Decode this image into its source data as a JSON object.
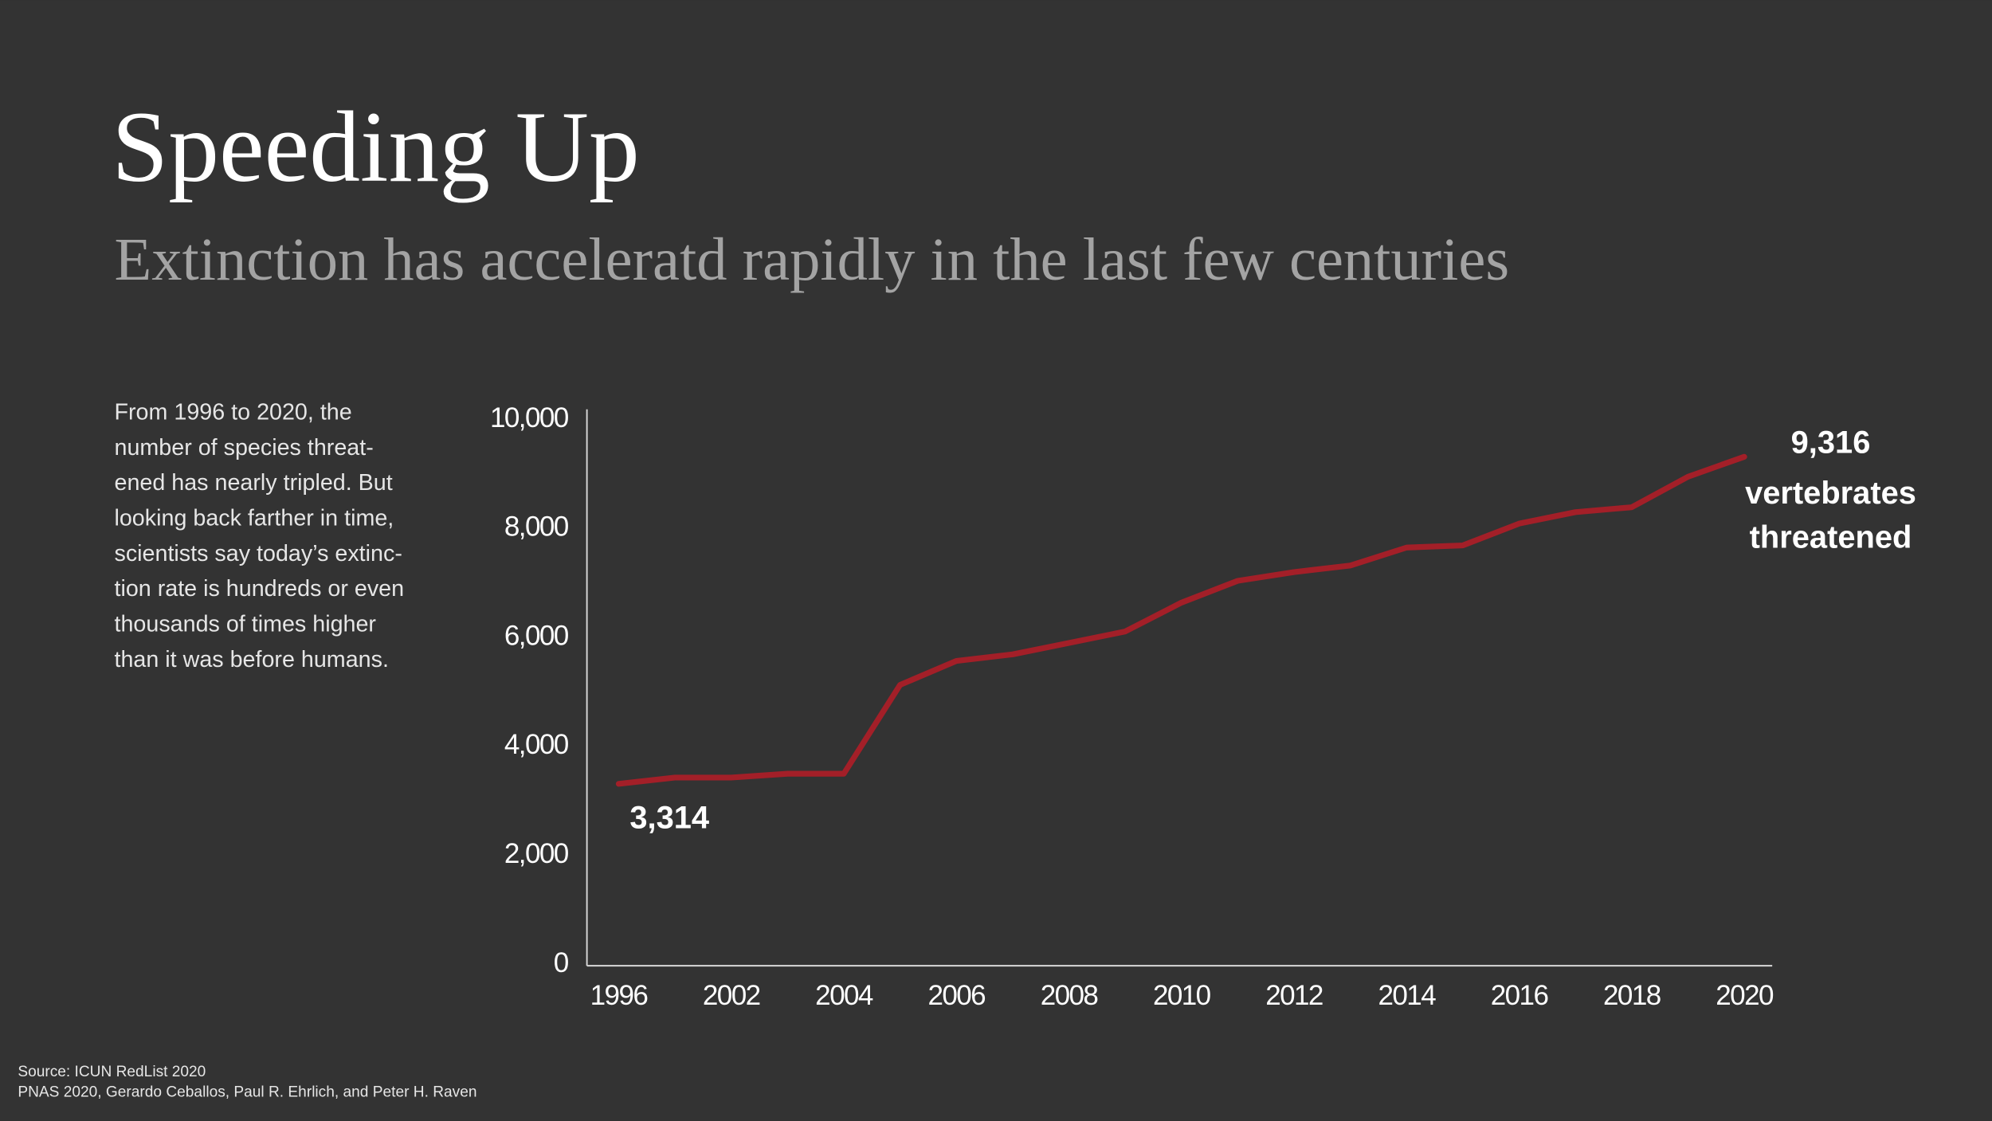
{
  "title": "Speeding Up",
  "subtitle": "Extinction has acceleratd rapidly in the last few centuries",
  "description": [
    "From 1996 to 2020, the",
    "number of species threat-",
    "ened has nearly tripled. But",
    "looking back farther in time,",
    "scientists say today’s extinc-",
    "tion rate is hundreds or even",
    "thousands of times higher",
    "than it was before humans."
  ],
  "source": [
    "Source:  ICUN RedList 2020",
    "PNAS 2020, Gerardo Ceballos,  Paul R. Ehrlich, and Peter H. Raven"
  ],
  "chart_data": {
    "type": "line",
    "categories": [
      "1996",
      null,
      "2002",
      null,
      "2004",
      null,
      "2006",
      null,
      "2008",
      null,
      "2010",
      null,
      "2012",
      null,
      "2014",
      null,
      "2016",
      null,
      "2018",
      null,
      "2020"
    ],
    "series": [
      {
        "name": "vertebrates threatened",
        "color": "#a31f28",
        "values": [
          3314,
          3430,
          3430,
          3500,
          3500,
          5130,
          5570,
          5690,
          5900,
          6110,
          6640,
          7040,
          7200,
          7320,
          7650,
          7690,
          8090,
          8300,
          8390,
          8950,
          9316
        ],
        "value_labels": [
          "3,314",
          null,
          null,
          null,
          null,
          null,
          null,
          null,
          null,
          null,
          null,
          null,
          null,
          null,
          null,
          null,
          null,
          null,
          null,
          null,
          "9,316"
        ]
      }
    ],
    "annotations": [
      "vertebrates",
      "threatened"
    ],
    "ylim": [
      0,
      10000
    ],
    "yticks": [
      0,
      {
        "value": 2000,
        "label": "2,000"
      },
      {
        "value": 4000,
        "label": "4,000"
      },
      {
        "value": 6000,
        "label": "6,000"
      },
      {
        "value": 8000,
        "label": "8,000"
      },
      {
        "value": 10000,
        "label": "10,000"
      }
    ],
    "grid": false
  }
}
